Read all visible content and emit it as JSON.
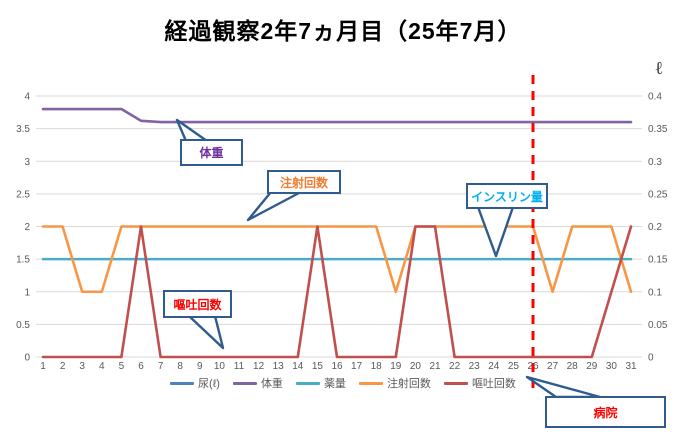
{
  "title": "経過観察2年7ヵ月目（25年7月）",
  "chart_data": {
    "type": "line",
    "x_ticks": [
      "1",
      "2",
      "3",
      "4",
      "5",
      "6",
      "7",
      "8",
      "9",
      "10",
      "11",
      "12",
      "13",
      "14",
      "15",
      "16",
      "17",
      "18",
      "19",
      "20",
      "21",
      "22",
      "23",
      "24",
      "25",
      "26",
      "27",
      "28",
      "29",
      "30",
      "31"
    ],
    "y_left": {
      "min": 0,
      "max": 4,
      "step": 0.5,
      "ticks": [
        "4",
        "3.5",
        "3",
        "2.5",
        "2",
        "1.5",
        "1",
        "0.5",
        "0"
      ]
    },
    "y_right": {
      "min": 0,
      "max": 0.4,
      "step": 0.05,
      "title": "ℓ",
      "ticks": [
        "0.4",
        "0.35",
        "0.3",
        "0.25",
        "0.2",
        "0.15",
        "0.1",
        "0.05",
        "0"
      ]
    },
    "grid": true,
    "legend_position": "bottom",
    "series": [
      {
        "name": "尿(ℓ)",
        "color": "#4F81BD",
        "values": []
      },
      {
        "name": "体重",
        "color": "#8064A2",
        "values": [
          3.8,
          3.8,
          3.8,
          3.8,
          3.8,
          3.62,
          3.6,
          3.6,
          3.6,
          3.6,
          3.6,
          3.6,
          3.6,
          3.6,
          3.6,
          3.6,
          3.6,
          3.6,
          3.6,
          3.6,
          3.6,
          3.6,
          3.6,
          3.6,
          3.6,
          3.6,
          3.6,
          3.6,
          3.6,
          3.6,
          3.6
        ]
      },
      {
        "name": "薬量",
        "color": "#4BACC6",
        "values": [
          1.5,
          1.5,
          1.5,
          1.5,
          1.5,
          1.5,
          1.5,
          1.5,
          1.5,
          1.5,
          1.5,
          1.5,
          1.5,
          1.5,
          1.5,
          1.5,
          1.5,
          1.5,
          1.5,
          1.5,
          1.5,
          1.5,
          1.5,
          1.5,
          1.5,
          1.5,
          1.5,
          1.5,
          1.5,
          1.5,
          1.5
        ]
      },
      {
        "name": "注射回数",
        "color": "#F79646",
        "values": [
          2,
          2,
          1,
          1,
          2,
          2,
          2,
          2,
          2,
          2,
          2,
          2,
          2,
          2,
          2,
          2,
          2,
          2,
          1,
          2,
          2,
          2,
          2,
          2,
          2,
          2,
          1,
          2,
          2,
          2,
          1
        ]
      },
      {
        "name": "嘔吐回数",
        "color": "#C0504D",
        "values": [
          0,
          0,
          0,
          0,
          0,
          2,
          0,
          0,
          0,
          0,
          0,
          0,
          0,
          0,
          2,
          0,
          0,
          0,
          0,
          2,
          2,
          0,
          0,
          0,
          0,
          0,
          0,
          0,
          0,
          1,
          2
        ]
      }
    ],
    "annotations": {
      "hospital_line": {
        "day": 26,
        "color": "#FF0000",
        "style": "dashed"
      }
    }
  },
  "callouts": {
    "taiju": {
      "label": "体重",
      "color": "#7030A0"
    },
    "chusha": {
      "label": "注射回数",
      "color": "#ED7D31"
    },
    "insulin": {
      "label": "インスリン量",
      "color": "#00B0F0"
    },
    "outo": {
      "label": "嘔吐回数",
      "color": "#FF0000"
    },
    "byoin": {
      "label": "病院",
      "color": "#FF0000"
    }
  },
  "colors": {
    "grid": "#D9D9D9",
    "axis_text": "#595959",
    "callout_border": "#2F5B8F"
  }
}
